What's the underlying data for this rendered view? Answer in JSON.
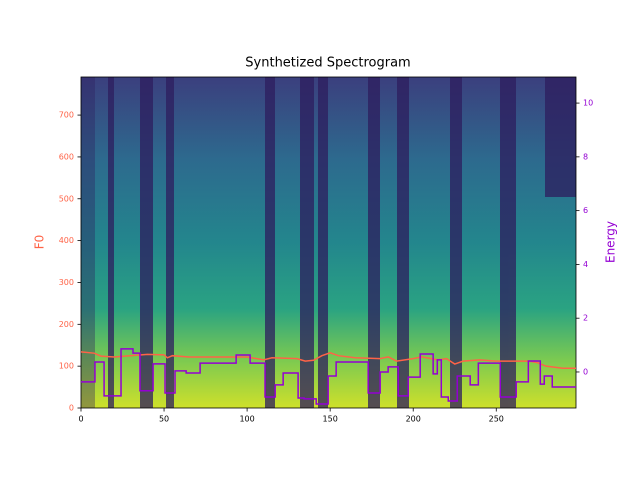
{
  "chart_data": {
    "type": "line",
    "title": "Synthetized Spectrogram",
    "y_label": "F0",
    "y2_label": "Energy",
    "xlim": [
      0,
      298
    ],
    "xticks": [
      0,
      50,
      100,
      150,
      200,
      250
    ],
    "ylim": [
      0,
      791
    ],
    "yticks": [
      0,
      100,
      200,
      300,
      400,
      500,
      600,
      700
    ],
    "y2lim": [
      -1.34,
      10.97
    ],
    "y2ticks": [
      0,
      2,
      4,
      6,
      8,
      10
    ],
    "series": [
      {
        "name": "F0",
        "color": "#ff6347",
        "drawstyle": "default",
        "x": [
          0,
          8,
          12,
          20,
          40,
          50,
          52,
          55,
          65,
          100,
          110,
          115,
          130,
          135,
          140,
          145,
          150,
          155,
          165,
          180,
          185,
          190,
          200,
          205,
          215,
          220,
          225,
          230,
          240,
          250,
          270,
          275,
          280,
          290,
          298
        ],
        "values": [
          134,
          131,
          124,
          122,
          128,
          127,
          120,
          125,
          122,
          122,
          115,
          120,
          118,
          112,
          114,
          125,
          132,
          125,
          120,
          118,
          122,
          112,
          118,
          122,
          115,
          118,
          105,
          112,
          115,
          112,
          112,
          108,
          100,
          95,
          95
        ]
      },
      {
        "name": "Energy",
        "color": "#9400d3",
        "axis": "y2",
        "drawstyle": "steps-post",
        "x": [
          0,
          8.4,
          13.9,
          24.1,
          31.3,
          35.5,
          43.4,
          50.6,
          56.6,
          63.3,
          71.7,
          93.4,
          101.8,
          110.8,
          116.9,
          121.7,
          130.7,
          134.3,
          141.6,
          148.8,
          153.6,
          172.9,
          180.1,
          184.9,
          191,
          197,
          204.2,
          212,
          214.5,
          216.9,
          221.1,
          226.5,
          234.3,
          239.2,
          252.4,
          262,
          269.3,
          276.5,
          278.9,
          283.7,
          298
        ],
        "values": [
          -0.37,
          0.37,
          -0.89,
          0.86,
          0.7,
          -0.7,
          0.3,
          -0.78,
          0.04,
          -0.04,
          0.33,
          0.63,
          0.33,
          -0.93,
          -0.48,
          -0.04,
          -0.97,
          -1.0,
          -1.19,
          -0.15,
          0.37,
          -0.78,
          0.0,
          0.19,
          -0.89,
          -0.19,
          0.67,
          -0.07,
          0.45,
          -0.93,
          -1.08,
          -0.15,
          -0.48,
          0.33,
          -0.93,
          -0.37,
          0.41,
          -0.45,
          -0.15,
          -0.56,
          -0.56
        ]
      }
    ]
  }
}
